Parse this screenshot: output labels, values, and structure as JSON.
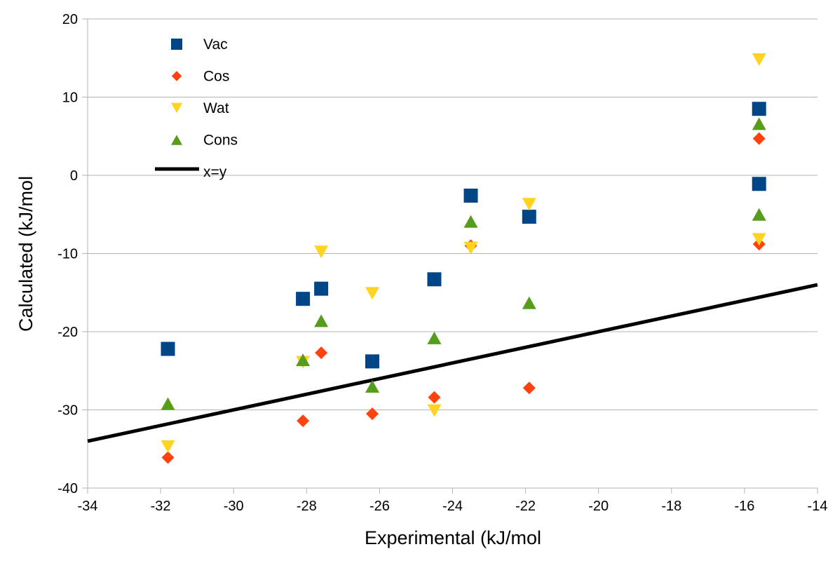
{
  "chart_data": {
    "type": "scatter",
    "title": "",
    "xlabel": "Experimental (kJ/mol",
    "ylabel": "Calculated (kJ/mol",
    "xlim": [
      -34,
      -14
    ],
    "ylim": [
      -40,
      20
    ],
    "xticks": [
      -34,
      -32,
      -30,
      -28,
      -26,
      -24,
      -22,
      -20,
      -18,
      -16,
      -14
    ],
    "yticks": [
      -40,
      -30,
      -20,
      -10,
      0,
      10,
      20
    ],
    "grid": "horizontal",
    "legend_position": "top-left",
    "series": [
      {
        "name": "Vac",
        "marker": "square",
        "color": "#004586",
        "points": [
          [
            -31.8,
            -22.2
          ],
          [
            -28.1,
            -15.8
          ],
          [
            -27.6,
            -14.5
          ],
          [
            -26.2,
            -23.8
          ],
          [
            -24.5,
            -13.3
          ],
          [
            -23.5,
            -2.6
          ],
          [
            -21.9,
            -5.3
          ],
          [
            -15.6,
            8.5
          ],
          [
            -15.6,
            -1.1
          ]
        ]
      },
      {
        "name": "Cos",
        "marker": "diamond",
        "color": "#ff420e",
        "points": [
          [
            -31.8,
            -36.1
          ],
          [
            -28.1,
            -31.4
          ],
          [
            -27.6,
            -22.7
          ],
          [
            -26.2,
            -30.5
          ],
          [
            -24.5,
            -28.4
          ],
          [
            -23.5,
            -9.0
          ],
          [
            -21.9,
            -27.2
          ],
          [
            -15.6,
            4.7
          ],
          [
            -15.6,
            -8.8
          ]
        ]
      },
      {
        "name": "Wat",
        "marker": "triangle-down",
        "color": "#ffd320",
        "points": [
          [
            -31.8,
            -34.7
          ],
          [
            -28.1,
            -23.9
          ],
          [
            -27.6,
            -9.8
          ],
          [
            -26.2,
            -15.1
          ],
          [
            -24.5,
            -30.1
          ],
          [
            -23.5,
            -9.3
          ],
          [
            -21.9,
            -3.7
          ],
          [
            -15.6,
            14.8
          ],
          [
            -15.6,
            -8.2
          ]
        ]
      },
      {
        "name": "Cons",
        "marker": "triangle-up",
        "color": "#579d1c",
        "points": [
          [
            -31.8,
            -29.2
          ],
          [
            -28.1,
            -23.6
          ],
          [
            -27.6,
            -18.6
          ],
          [
            -26.2,
            -27.0
          ],
          [
            -24.5,
            -20.8
          ],
          [
            -23.5,
            -5.9
          ],
          [
            -21.9,
            -16.3
          ],
          [
            -15.6,
            6.6
          ],
          [
            -15.6,
            -5.0
          ]
        ]
      },
      {
        "name": "x=y",
        "type": "line",
        "color": "#000000",
        "points": [
          [
            -34,
            -34
          ],
          [
            -14,
            -14
          ]
        ]
      }
    ]
  }
}
